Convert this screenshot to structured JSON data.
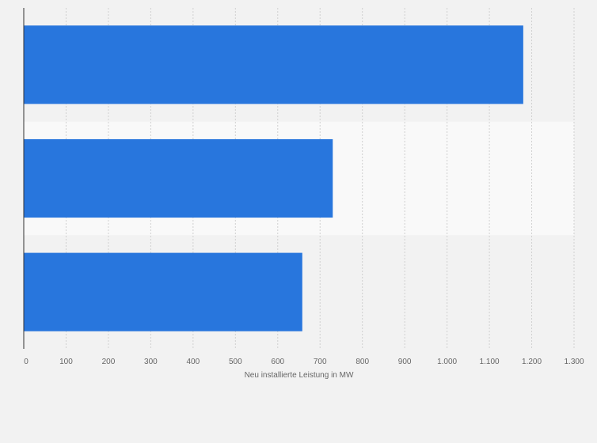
{
  "chart_data": {
    "type": "bar",
    "orientation": "horizontal",
    "categories": [
      "",
      "",
      ""
    ],
    "values": [
      1180,
      730,
      658
    ],
    "title": "",
    "xlabel": "Neu installierte Leistung in MW",
    "ylabel": "",
    "xlim": [
      0,
      1300
    ],
    "ticks": [
      0,
      100,
      200,
      300,
      400,
      500,
      600,
      700,
      800,
      900,
      1000,
      1100,
      1200,
      1300
    ],
    "tick_labels": [
      "0",
      "100",
      "200",
      "300",
      "400",
      "500",
      "600",
      "700",
      "800",
      "900",
      "1.000",
      "1.100",
      "1.200",
      "1.300"
    ],
    "grid": true,
    "bar_color": "#2876dd",
    "band_color": "#f9f9f9",
    "background_color": "#f2f2f2",
    "gridline_color": "#d0d0d0",
    "text_color": "#666666"
  }
}
